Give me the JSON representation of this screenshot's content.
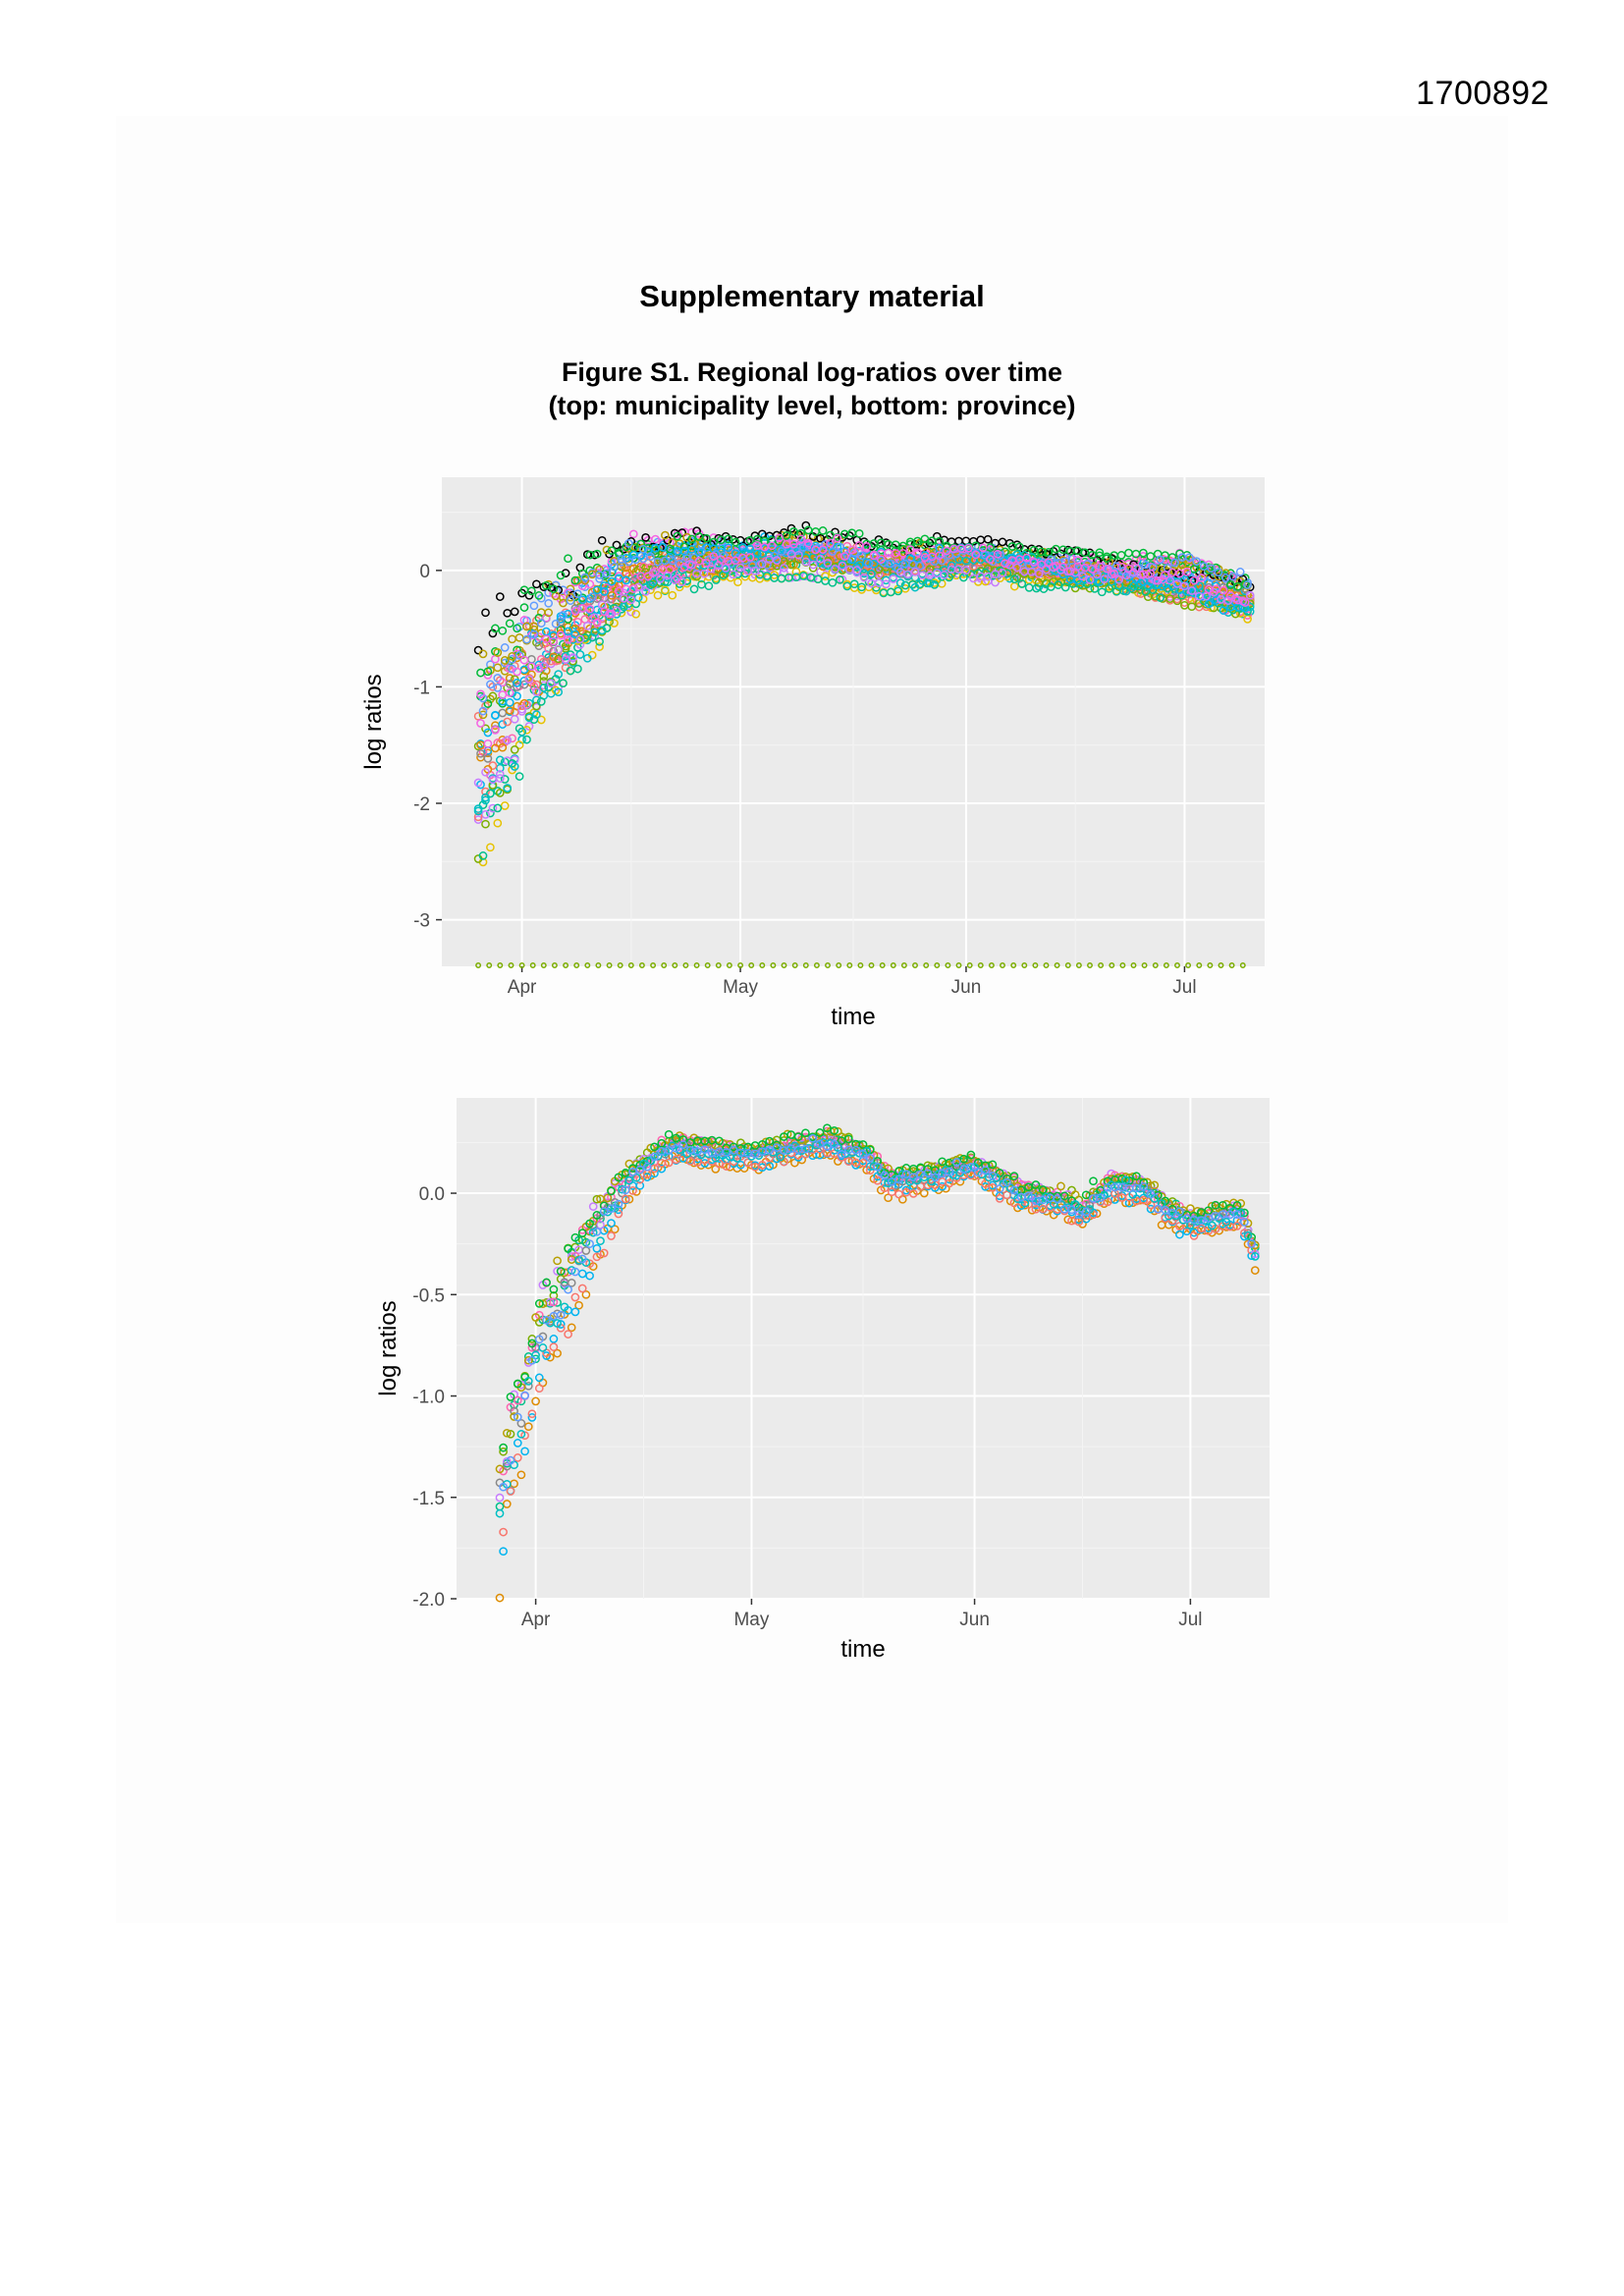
{
  "page": {
    "doc_id": "1700892",
    "section_title": "Supplementary material",
    "figure_caption_line1": "Figure S1.  Regional log-ratios over time",
    "figure_caption_line2": "(top: municipality level, bottom: province)"
  },
  "chart_data": [
    {
      "type": "scatter",
      "title": "",
      "xlabel": "time",
      "ylabel": "log ratios",
      "x_ticks": [
        "Apr",
        "May",
        "Jun",
        "Jul"
      ],
      "x_tick_dates": [
        "2020-04-01",
        "2020-05-01",
        "2020-06-01",
        "2020-07-01"
      ],
      "xlim": [
        "2020-03-21",
        "2020-07-12"
      ],
      "x_range_data": [
        "2020-03-26",
        "2020-07-10"
      ],
      "y_ticks": [
        0,
        -1,
        -2,
        -3
      ],
      "y_tick_labels": [
        "0",
        "-1",
        "-2",
        "-3"
      ],
      "ylim": [
        -3.4,
        0.8
      ],
      "grid": true,
      "legend": "none",
      "marker": "open-circle",
      "series_count_note": "",
      "envelope": [
        {
          "date": "2020-03-26",
          "low": -3.2,
          "high": 0.05
        },
        {
          "date": "2020-03-29",
          "low": -2.6,
          "high": 0.1
        },
        {
          "date": "2020-04-01",
          "low": -2.0,
          "high": 0.2
        },
        {
          "date": "2020-04-05",
          "low": -1.5,
          "high": 0.3
        },
        {
          "date": "2020-04-10",
          "low": -1.0,
          "high": 0.4
        },
        {
          "date": "2020-04-15",
          "low": -0.6,
          "high": 0.5
        },
        {
          "date": "2020-04-20",
          "low": -0.3,
          "high": 0.45
        },
        {
          "date": "2020-04-25",
          "low": -0.15,
          "high": 0.4
        },
        {
          "date": "2020-05-01",
          "low": -0.1,
          "high": 0.35
        },
        {
          "date": "2020-05-10",
          "low": -0.05,
          "high": 0.4
        },
        {
          "date": "2020-05-20",
          "low": -0.2,
          "high": 0.3
        },
        {
          "date": "2020-06-01",
          "low": -0.1,
          "high": 0.3
        },
        {
          "date": "2020-06-10",
          "low": -0.15,
          "high": 0.2
        },
        {
          "date": "2020-06-20",
          "low": -0.2,
          "high": 0.15
        },
        {
          "date": "2020-07-01",
          "low": -0.3,
          "high": 0.15
        },
        {
          "date": "2020-07-10",
          "low": -0.45,
          "high": 0.0
        }
      ]
    },
    {
      "type": "scatter",
      "title": "",
      "xlabel": "time",
      "ylabel": "log ratios",
      "x_ticks": [
        "Apr",
        "May",
        "Jun",
        "Jul"
      ],
      "x_tick_dates": [
        "2020-04-01",
        "2020-05-01",
        "2020-06-01",
        "2020-07-01"
      ],
      "xlim": [
        "2020-03-21",
        "2020-07-12"
      ],
      "x_range_data": [
        "2020-03-27",
        "2020-07-10"
      ],
      "y_ticks": [
        0.0,
        -0.5,
        -1.0,
        -1.5,
        -2.0
      ],
      "y_tick_labels": [
        "0.0",
        "-0.5",
        "-1.0",
        "-1.5",
        "-2.0"
      ],
      "ylim": [
        -2.0,
        0.47
      ],
      "grid": true,
      "legend": "none",
      "marker": "open-circle",
      "mean_curve": [
        {
          "date": "2020-03-27",
          "value": -1.6
        },
        {
          "date": "2020-03-29",
          "value": -1.2
        },
        {
          "date": "2020-03-31",
          "value": -0.95
        },
        {
          "date": "2020-04-02",
          "value": -0.7
        },
        {
          "date": "2020-04-05",
          "value": -0.5
        },
        {
          "date": "2020-04-08",
          "value": -0.3
        },
        {
          "date": "2020-04-11",
          "value": -0.1
        },
        {
          "date": "2020-04-15",
          "value": 0.1
        },
        {
          "date": "2020-04-20",
          "value": 0.22
        },
        {
          "date": "2020-04-25",
          "value": 0.2
        },
        {
          "date": "2020-05-01",
          "value": 0.18
        },
        {
          "date": "2020-05-07",
          "value": 0.22
        },
        {
          "date": "2020-05-12",
          "value": 0.25
        },
        {
          "date": "2020-05-17",
          "value": 0.18
        },
        {
          "date": "2020-05-20",
          "value": 0.05
        },
        {
          "date": "2020-05-25",
          "value": 0.07
        },
        {
          "date": "2020-06-01",
          "value": 0.13
        },
        {
          "date": "2020-06-07",
          "value": 0.0
        },
        {
          "date": "2020-06-13",
          "value": -0.05
        },
        {
          "date": "2020-06-16",
          "value": -0.1
        },
        {
          "date": "2020-06-20",
          "value": 0.03
        },
        {
          "date": "2020-06-24",
          "value": 0.02
        },
        {
          "date": "2020-06-28",
          "value": -0.1
        },
        {
          "date": "2020-07-01",
          "value": -0.15
        },
        {
          "date": "2020-07-05",
          "value": -0.12
        },
        {
          "date": "2020-07-08",
          "value": -0.1
        },
        {
          "date": "2020-07-10",
          "value": -0.3
        }
      ]
    }
  ],
  "colors": {
    "panel_bg": "#ebebeb",
    "grid_major": "#ffffff",
    "grid_minor": "#f4f4f4",
    "tick_text": "#4d4d4d",
    "palette": [
      "#f8766d",
      "#de8c00",
      "#b79f00",
      "#7cae00",
      "#00ba38",
      "#00c08b",
      "#00bfc4",
      "#00b4f0",
      "#619cff",
      "#c77cff",
      "#f564e3",
      "#ff64b0",
      "#000000",
      "#888888",
      "#e6c200"
    ]
  }
}
